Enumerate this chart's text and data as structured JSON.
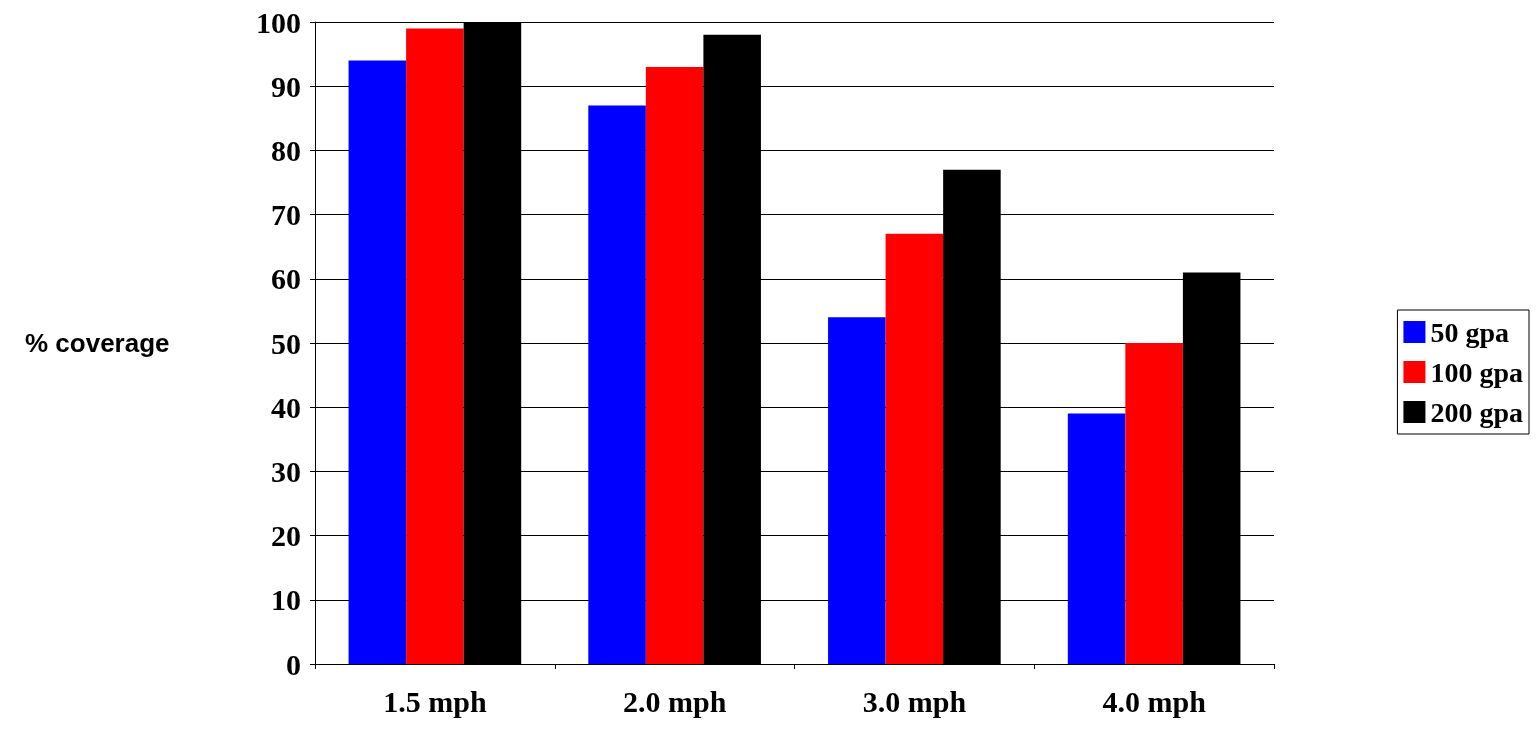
{
  "chart_data": {
    "type": "bar",
    "ylabel": "% coverage",
    "categories": [
      "1.5 mph",
      "2.0 mph",
      "3.0 mph",
      "4.0 mph"
    ],
    "series": [
      {
        "name": "50 gpa",
        "color": "#0000ff",
        "values": [
          94,
          87,
          54,
          39
        ]
      },
      {
        "name": "100 gpa",
        "color": "#ff0000",
        "values": [
          99,
          93,
          67,
          50
        ]
      },
      {
        "name": "200 gpa",
        "color": "#000000",
        "values": [
          100,
          98,
          77,
          61
        ]
      }
    ],
    "ylim": [
      0,
      100
    ],
    "yticks": [
      0,
      10,
      20,
      30,
      40,
      50,
      60,
      70,
      80,
      90,
      100
    ],
    "grid": "y",
    "legend": "right"
  }
}
